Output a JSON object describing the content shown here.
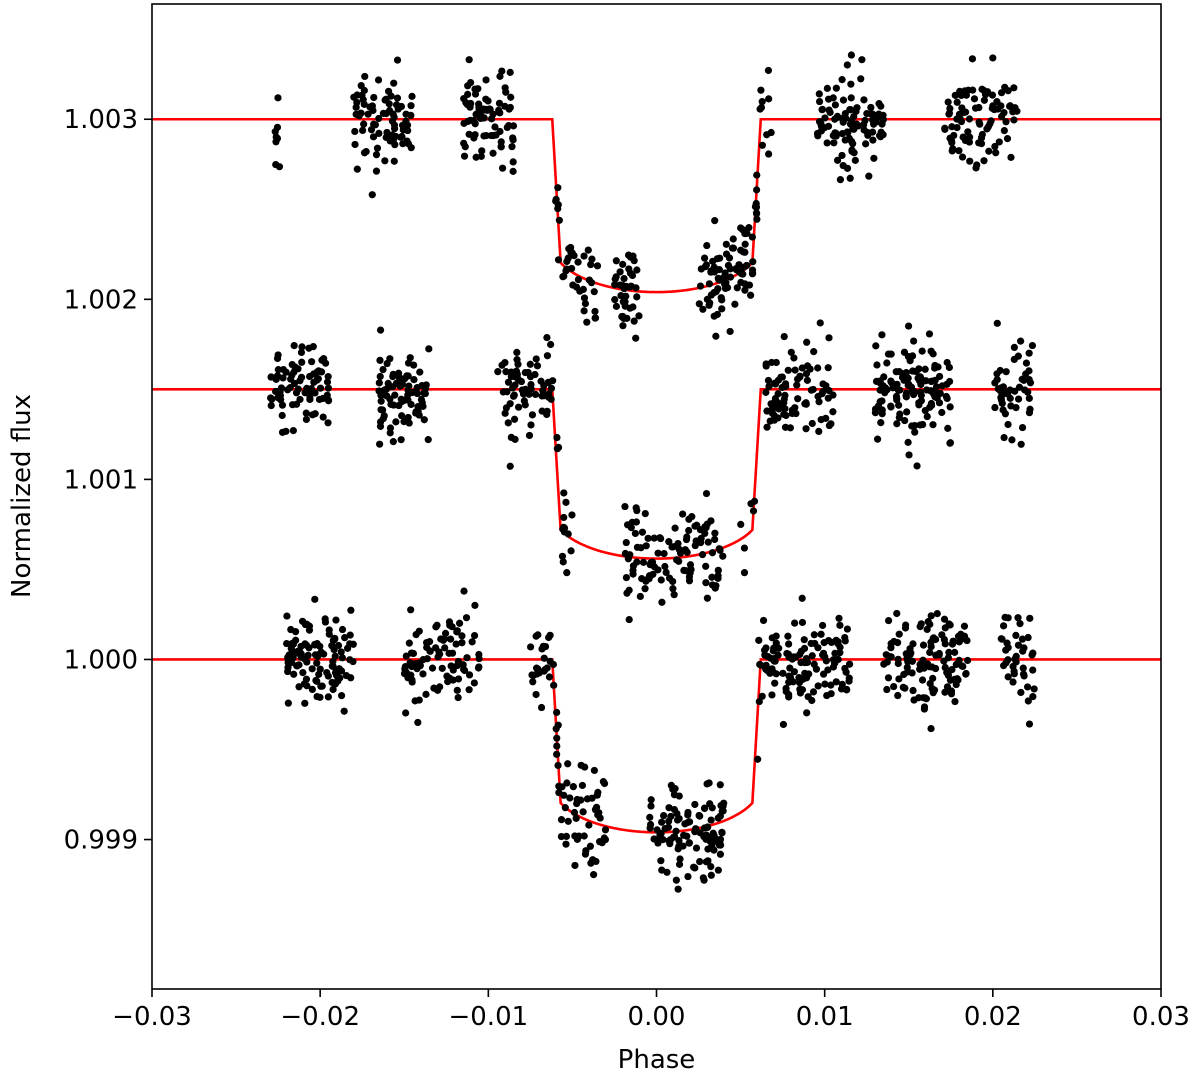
{
  "chart_data": {
    "type": "scatter",
    "xlabel": "Phase",
    "ylabel": "Normalized flux",
    "xlim": [
      -0.03,
      0.03
    ],
    "ylim": [
      0.99817,
      1.00364
    ],
    "xticks": [
      -0.03,
      -0.02,
      -0.01,
      0.0,
      0.01,
      0.02,
      0.03
    ],
    "xtick_labels": [
      "−0.03",
      "−0.02",
      "−0.01",
      "0.00",
      "0.01",
      "0.02",
      "0.03"
    ],
    "yticks": [
      0.999,
      1.0,
      1.001,
      1.002,
      1.003
    ],
    "ytick_labels": [
      "0.999",
      "1.000",
      "1.001",
      "1.002",
      "1.003"
    ],
    "grid": false,
    "legend": "none",
    "colors": {
      "data_points": "#000000",
      "model": "#ff0000"
    },
    "transit_model": {
      "t1": -0.0062,
      "t2": -0.0057,
      "t3": 0.0057,
      "t4": 0.0062
    },
    "series": [
      {
        "baseline": 1.003,
        "depth": 0.00096,
        "scatter": 0.00013,
        "observation_windows": [
          [
            -0.0227,
            -0.0224
          ],
          [
            -0.018,
            -0.0145
          ],
          [
            -0.0115,
            -0.0085
          ],
          [
            -0.006,
            -0.0035
          ],
          [
            -0.0025,
            -0.001
          ],
          [
            0.0025,
            0.006
          ],
          [
            0.006,
            0.007
          ],
          [
            0.0095,
            0.0135
          ],
          [
            0.017,
            0.0215
          ]
        ],
        "points_per_window": [
          8,
          80,
          80,
          40,
          40,
          90,
          10,
          100,
          90
        ]
      },
      {
        "baseline": 1.0015,
        "depth": 0.00094,
        "scatter": 0.00013,
        "observation_windows": [
          [
            -0.023,
            -0.0195
          ],
          [
            -0.0165,
            -0.0135
          ],
          [
            -0.0095,
            -0.0065
          ],
          [
            -0.0065,
            -0.005
          ],
          [
            -0.002,
            0.004
          ],
          [
            0.005,
            0.006
          ],
          [
            0.0065,
            0.0105
          ],
          [
            0.013,
            0.0175
          ],
          [
            0.02,
            0.0225
          ]
        ],
        "points_per_window": [
          85,
          80,
          60,
          25,
          110,
          6,
          90,
          130,
          50
        ]
      },
      {
        "baseline": 1.0,
        "depth": 0.00096,
        "scatter": 0.00013,
        "observation_windows": [
          [
            -0.022,
            -0.018
          ],
          [
            -0.015,
            -0.0105
          ],
          [
            -0.0075,
            -0.006
          ],
          [
            -0.006,
            -0.003
          ],
          [
            -0.0005,
            0.004
          ],
          [
            0.006,
            0.0115
          ],
          [
            0.0135,
            0.0185
          ],
          [
            0.0205,
            0.0225
          ]
        ],
        "points_per_window": [
          110,
          90,
          25,
          60,
          110,
          130,
          120,
          40
        ]
      }
    ]
  }
}
